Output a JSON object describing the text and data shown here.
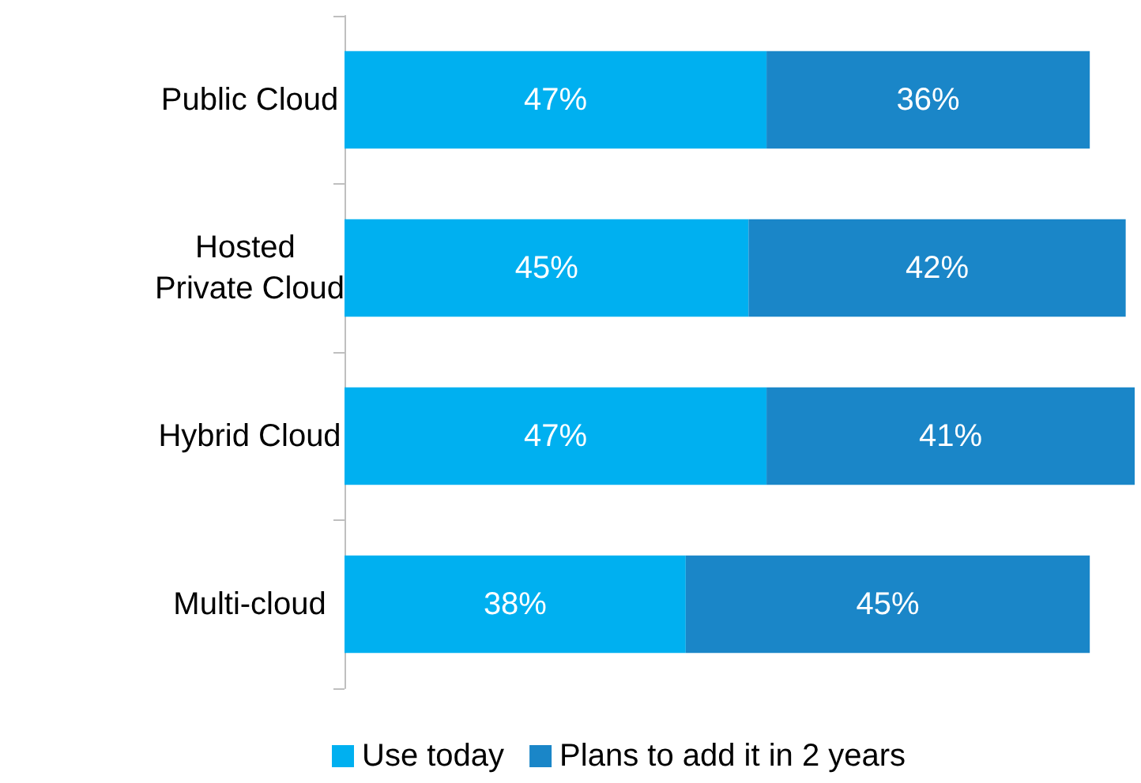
{
  "chart_data": {
    "type": "bar",
    "orientation": "horizontal",
    "stacked": true,
    "categories": [
      "Public Cloud",
      "Hosted Private Cloud",
      "Hybrid Cloud",
      "Multi-cloud"
    ],
    "series": [
      {
        "name": "Use today",
        "color": "#00b0f0",
        "values": [
          47,
          45,
          47,
          38
        ],
        "value_labels": [
          "47%",
          "45%",
          "47%",
          "38%"
        ]
      },
      {
        "name": "Plans to add it in 2 years",
        "color": "#1a86c8",
        "values": [
          36,
          42,
          41,
          45
        ],
        "value_labels": [
          "36%",
          "42%",
          "41%",
          "45%"
        ]
      }
    ],
    "legend": "bottom",
    "grid": false
  }
}
